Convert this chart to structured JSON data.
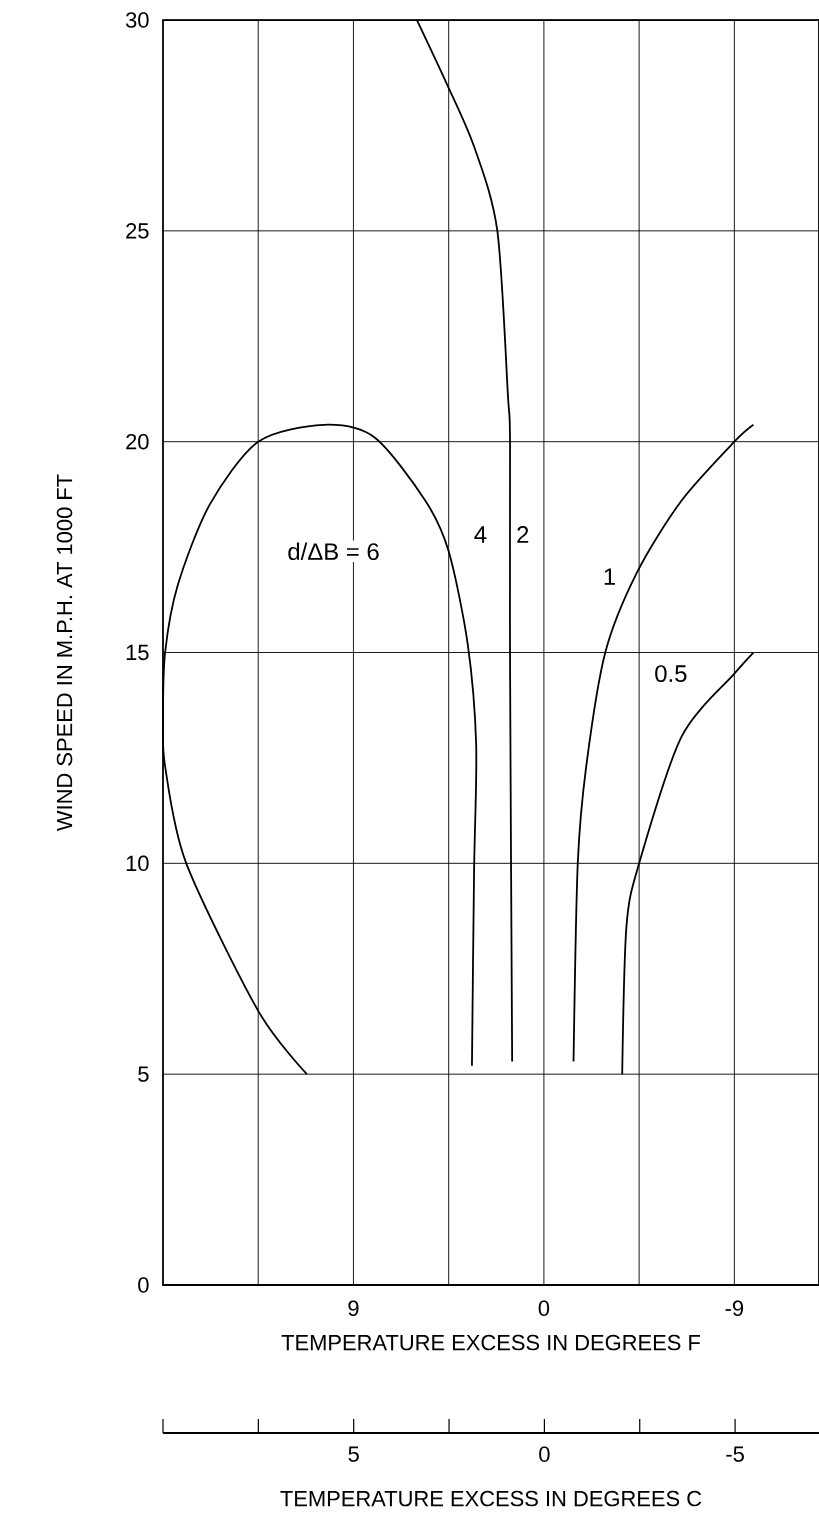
{
  "chart_data": {
    "type": "line",
    "xlabel": "TEMPERATURE EXCESS IN DEGREES F",
    "ylabel": "WIND SPEED IN M.P.H. AT 1000 FT",
    "x2label": "TEMPERATURE EXCESS IN DEGREES C",
    "xlim": [
      18,
      -13
    ],
    "ylim": [
      0,
      30
    ],
    "xticks": [
      {
        "value": 13.5,
        "label": null
      },
      9,
      {
        "value": 4.5,
        "label": null
      },
      0,
      {
        "value": -4.5,
        "label": null
      },
      -9
    ],
    "yticks": [
      0,
      5,
      10,
      15,
      20,
      25,
      30
    ],
    "x2lim": [
      10,
      -7.2
    ],
    "x2ticks": [
      {
        "value": 10,
        "label": null
      },
      {
        "value": 7.5,
        "label": null
      },
      5,
      {
        "value": 2.5,
        "label": null
      },
      0,
      {
        "value": -2.5,
        "label": null
      },
      -5
    ],
    "grid": true,
    "marker": "none",
    "line_style": "solid",
    "series": [
      {
        "color": "#000000",
        "x": [
          11.2,
          13.5,
          16.9,
          17.9,
          18.0,
          17.9,
          17.3,
          15.8,
          13.5,
          10.4,
          8.0,
          5.6,
          4.5,
          3.6,
          3.2,
          3.3,
          3.4
        ],
        "values": [
          5,
          6.5,
          10,
          12.3,
          13.4,
          15,
          16.6,
          18.5,
          20,
          20.4,
          20.1,
          18.6,
          17.4,
          15.2,
          12.8,
          9.8,
          5.2
        ]
      },
      {
        "color": "#000000",
        "x": [
          6.0,
          4.6,
          3.3,
          2.2,
          1.7,
          1.6,
          1.6,
          1.5
        ],
        "values": [
          30,
          28.5,
          27,
          25,
          21.1,
          20,
          14.8,
          5.3
        ]
      },
      {
        "color": "#000000",
        "x": [
          -9.9,
          -9.0,
          -6.5,
          -4.4,
          -2.9,
          -2.0,
          -1.6,
          -1.4
        ],
        "values": [
          20.4,
          20,
          18.6,
          16.9,
          15,
          12.3,
          10,
          5.3
        ]
      },
      {
        "color": "#000000",
        "x": [
          -9.9,
          -9.0,
          -6.5,
          -4.5,
          -3.9,
          -3.7
        ],
        "values": [
          15,
          14.5,
          13,
          10,
          8.5,
          5
        ]
      }
    ],
    "annotations": [
      "d/ΔB = 6",
      {
        "text": "4",
        "x": 3.0,
        "y": 17.8
      },
      {
        "text": "2",
        "x": 1.0,
        "y": 17.8
      },
      {
        "text": "1",
        "x": -3.1,
        "y": 16.8
      },
      {
        "text": "0.5",
        "x": -6.0,
        "y": 14.5
      }
    ]
  }
}
